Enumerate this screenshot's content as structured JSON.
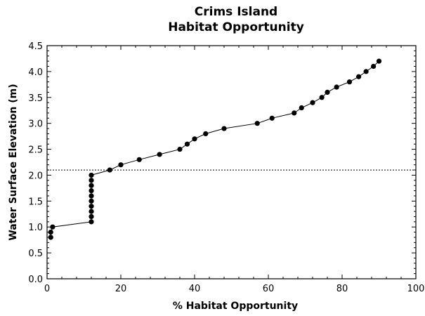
{
  "chart_data": {
    "type": "line",
    "title": "Crims Island",
    "subtitle": "Habitat Opportunity",
    "xlabel": "% Habitat Opportunity",
    "ylabel": "Water Surface Elevation (m)",
    "xlim": [
      0,
      100
    ],
    "ylim": [
      0.0,
      4.5
    ],
    "xticks": [
      0,
      20,
      40,
      60,
      80,
      100
    ],
    "yticks": [
      "0.0",
      "0.5",
      "1.0",
      "1.5",
      "2.0",
      "2.5",
      "3.0",
      "3.5",
      "4.0",
      "4.5"
    ],
    "grid": false,
    "reference_line": {
      "axis": "y",
      "value": 2.1,
      "style": "dotted"
    },
    "series": [
      {
        "marker": "circle",
        "color": "#000000",
        "points": [
          [
            1,
            0.8
          ],
          [
            1,
            0.9
          ],
          [
            1.5,
            1.0
          ],
          [
            12,
            1.1
          ],
          [
            12,
            1.2
          ],
          [
            12,
            1.3
          ],
          [
            12,
            1.4
          ],
          [
            12,
            1.5
          ],
          [
            12,
            1.6
          ],
          [
            12,
            1.7
          ],
          [
            12,
            1.8
          ],
          [
            12,
            1.9
          ],
          [
            12,
            2.0
          ],
          [
            17,
            2.1
          ],
          [
            20,
            2.2
          ],
          [
            25,
            2.3
          ],
          [
            30.5,
            2.4
          ],
          [
            36,
            2.5
          ],
          [
            38,
            2.6
          ],
          [
            40,
            2.7
          ],
          [
            43,
            2.8
          ],
          [
            48,
            2.9
          ],
          [
            57,
            3.0
          ],
          [
            61,
            3.1
          ],
          [
            67,
            3.2
          ],
          [
            69,
            3.3
          ],
          [
            72,
            3.4
          ],
          [
            74.5,
            3.5
          ],
          [
            76,
            3.6
          ],
          [
            78.5,
            3.7
          ],
          [
            82,
            3.8
          ],
          [
            84.5,
            3.9
          ],
          [
            86.5,
            4.0
          ],
          [
            88.5,
            4.1
          ],
          [
            90,
            4.2
          ]
        ]
      }
    ]
  }
}
